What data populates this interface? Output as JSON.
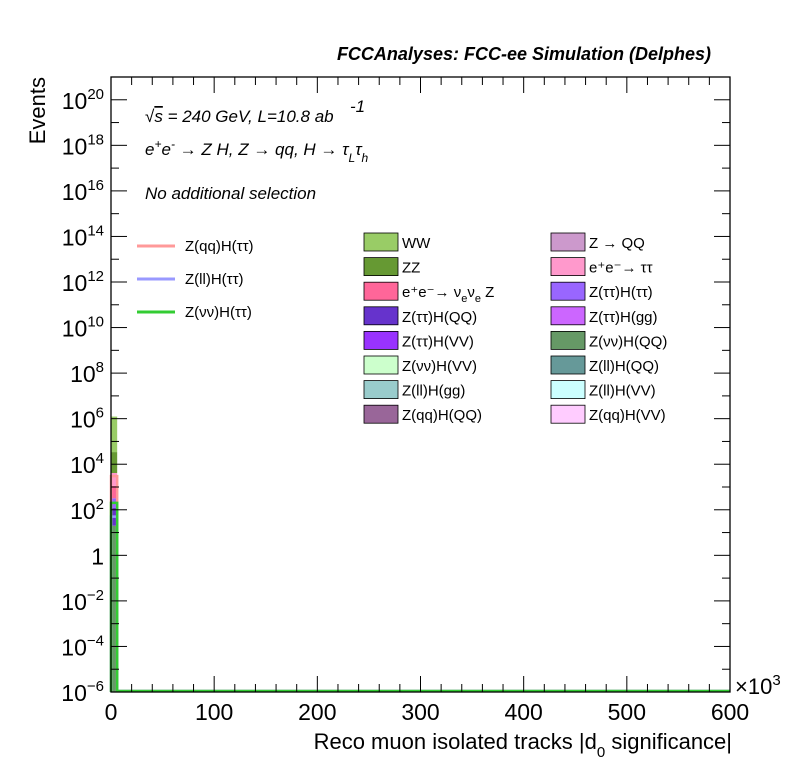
{
  "chart_data": {
    "type": "bar",
    "stacked": true,
    "title": "FCCAnalyses: FCC-ee Simulation (Delphes)",
    "xlabel": "Reco muon isolated tracks |d0 significance|",
    "ylabel": "Events",
    "x_multiplier": "×10^3",
    "xlim": [
      0,
      600000
    ],
    "ylim": [
      1e-06,
      1e+21
    ],
    "y_scale": "log",
    "grid": false,
    "x_ticks": [
      "0",
      "100",
      "200",
      "300",
      "400",
      "500",
      "600"
    ],
    "y_ticks": [
      {
        "base": "10",
        "exp": "20"
      },
      {
        "base": "10",
        "exp": "18"
      },
      {
        "base": "10",
        "exp": "16"
      },
      {
        "base": "10",
        "exp": "14"
      },
      {
        "base": "10",
        "exp": "12"
      },
      {
        "base": "10",
        "exp": "10"
      },
      {
        "base": "10",
        "exp": "8"
      },
      {
        "base": "10",
        "exp": "6"
      },
      {
        "base": "10",
        "exp": "4"
      },
      {
        "base": "10",
        "exp": "2"
      },
      {
        "base": "1",
        "exp": ""
      },
      {
        "base": "10",
        "exp": "−2"
      },
      {
        "base": "10",
        "exp": "−4"
      },
      {
        "base": "10",
        "exp": "−6"
      }
    ],
    "annotations": {
      "energy": "√s = 240 GeV, L=10.8 ab",
      "energy_exp": "-1",
      "process": "e⁺e⁻ → Z H, Z → qq, H → τ_L τ_h",
      "selection": "No additional selection"
    },
    "signals": [
      {
        "name": "Z(qq)H(ττ)",
        "color": "#ff9999",
        "value": 3000
      },
      {
        "name": "Z(ll)H(ττ)",
        "color": "#9999ff",
        "value": 50
      },
      {
        "name": "Z(νν)H(ττ)",
        "color": "#33cc33",
        "value": 200
      }
    ],
    "backgrounds": [
      {
        "name": "WW",
        "color": "#99cc66",
        "value": 1200000
      },
      {
        "name": "Z → QQ",
        "color": "#cc99cc"
      },
      {
        "name": "ZZ",
        "color": "#669933",
        "value": 30000
      },
      {
        "name": "e⁺e⁻→ ττ",
        "color": "#ff99cc",
        "value": 3000
      },
      {
        "name": "e⁺e⁻→ νeνe Z",
        "color": "#ff6699",
        "value": 800
      },
      {
        "name": "Z(ττ)H(ττ)",
        "color": "#9966ff",
        "value": 200
      },
      {
        "name": "Z(ττ)H(QQ)",
        "color": "#6633cc",
        "value": 100
      },
      {
        "name": "Z(ττ)H(gg)",
        "color": "#cc66ff"
      },
      {
        "name": "Z(ττ)H(VV)",
        "color": "#9933ff"
      },
      {
        "name": "Z(νν)H(QQ)",
        "color": "#669966",
        "value": 20
      },
      {
        "name": "Z(νν)H(VV)",
        "color": "#ccffcc"
      },
      {
        "name": "Z(ll)H(QQ)",
        "color": "#669999"
      },
      {
        "name": "Z(ll)H(gg)",
        "color": "#99cccc"
      },
      {
        "name": "Z(ll)H(VV)",
        "color": "#ccffff"
      },
      {
        "name": "Z(qq)H(QQ)",
        "color": "#996699"
      },
      {
        "name": "Z(qq)H(VV)",
        "color": "#ffccff"
      }
    ],
    "bin_width": 6000
  }
}
